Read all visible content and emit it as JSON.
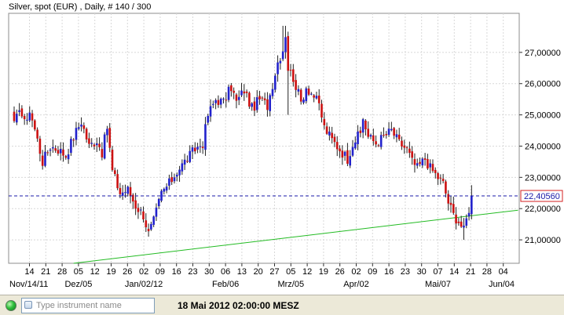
{
  "title": "Silver, spot (EUR) , Daily, # 140 / 300",
  "status": {
    "search_placeholder": "Type instrument name",
    "datetime": "18 Mai 2012 02:00:00 MESZ"
  },
  "colors": {
    "up": "#2222cc",
    "down": "#cc1111",
    "trendline": "#22bb22",
    "price_line": "#1a1aa8",
    "price_label": "#d42020"
  },
  "chart_data": {
    "type": "candlestick",
    "title": "Silver, spot (EUR) , Daily, # 140 / 300",
    "ylim": [
      20.25,
      28.25
    ],
    "yticks": [
      21,
      22,
      23,
      24,
      25,
      26,
      27
    ],
    "ytick_labels": [
      "21,00000",
      "22,00000",
      "23,00000",
      "24,00000",
      "25,00000",
      "26,00000",
      "27,00000"
    ],
    "current_price": 22.4056,
    "current_price_label": "22,40560",
    "day_ticks": [
      "14",
      "21",
      "28",
      "05",
      "12",
      "19",
      "26",
      "02",
      "09",
      "16",
      "23",
      "30",
      "06",
      "13",
      "20",
      "27",
      "05",
      "12",
      "19",
      "26",
      "02",
      "09",
      "16",
      "23",
      "30",
      "07",
      "14",
      "21",
      "28",
      "04"
    ],
    "month_labels": [
      {
        "tick": 0,
        "label": "Nov/14/11"
      },
      {
        "tick": 3,
        "label": "Dez/05"
      },
      {
        "tick": 7,
        "label": "Jan/02/12"
      },
      {
        "tick": 12,
        "label": "Feb/06"
      },
      {
        "tick": 16,
        "label": "Mrz/05"
      },
      {
        "tick": 20,
        "label": "Apr/02"
      },
      {
        "tick": 25,
        "label": "Mai/07"
      },
      {
        "tick": 29,
        "label": "Jun/04"
      }
    ],
    "anchors": [
      [
        0,
        24.8
      ],
      [
        3,
        25.1
      ],
      [
        5,
        24.7
      ],
      [
        6,
        25.2
      ],
      [
        9,
        24.2
      ],
      [
        11,
        23.5
      ],
      [
        14,
        24.0
      ],
      [
        17,
        23.9
      ],
      [
        20,
        23.7
      ],
      [
        23,
        24.3
      ],
      [
        26,
        24.8
      ],
      [
        29,
        24.0
      ],
      [
        32,
        24.2
      ],
      [
        34,
        23.8
      ],
      [
        36,
        24.6
      ],
      [
        38,
        23.2
      ],
      [
        41,
        22.5
      ],
      [
        44,
        22.6
      ],
      [
        47,
        22.1
      ],
      [
        50,
        21.8
      ],
      [
        52,
        21.2
      ],
      [
        54,
        21.6
      ],
      [
        57,
        22.5
      ],
      [
        60,
        22.8
      ],
      [
        63,
        23.2
      ],
      [
        66,
        23.5
      ],
      [
        70,
        23.9
      ],
      [
        73,
        24.1
      ],
      [
        75,
        25.0
      ],
      [
        78,
        25.5
      ],
      [
        81,
        25.4
      ],
      [
        84,
        25.9
      ],
      [
        86,
        25.4
      ],
      [
        89,
        25.8
      ],
      [
        92,
        25.2
      ],
      [
        95,
        25.5
      ],
      [
        98,
        25.3
      ],
      [
        100,
        26.0
      ],
      [
        102,
        26.7
      ],
      [
        104,
        27.1
      ],
      [
        105,
        27.6
      ],
      [
        106,
        26.5
      ],
      [
        108,
        26.2
      ],
      [
        111,
        25.4
      ],
      [
        113,
        25.9
      ],
      [
        116,
        25.6
      ],
      [
        118,
        25.3
      ],
      [
        120,
        24.6
      ],
      [
        123,
        24.2
      ],
      [
        126,
        23.9
      ],
      [
        129,
        23.6
      ],
      [
        131,
        24.1
      ],
      [
        134,
        24.4
      ],
      [
        135,
        24.9
      ],
      [
        137,
        24.3
      ],
      [
        140,
        24.1
      ],
      [
        143,
        24.3
      ],
      [
        146,
        24.5
      ],
      [
        149,
        24.1
      ],
      [
        152,
        23.9
      ],
      [
        154,
        23.5
      ],
      [
        156,
        23.3
      ],
      [
        159,
        23.6
      ],
      [
        161,
        23.3
      ],
      [
        164,
        23.0
      ],
      [
        166,
        22.8
      ],
      [
        168,
        22.2
      ],
      [
        170,
        21.8
      ],
      [
        172,
        21.6
      ],
      [
        174,
        21.3
      ],
      [
        176,
        22.0
      ],
      [
        177,
        22.4056
      ]
    ],
    "ranges": [
      [
        104,
        105,
        27.85,
        26.8
      ],
      [
        106,
        106,
        26.6,
        25.0
      ],
      [
        174,
        174,
        21.7,
        21.0
      ],
      [
        177,
        177,
        22.75,
        21.8
      ]
    ],
    "trendline": {
      "x1": 23,
      "y1": 20.25,
      "x2": 195,
      "y2": 21.95
    }
  }
}
